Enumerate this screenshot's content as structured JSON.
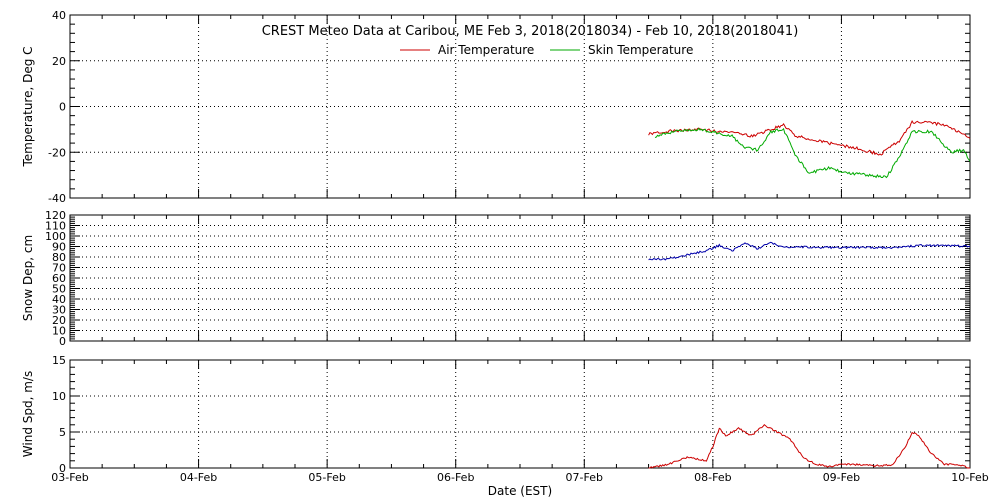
{
  "title": "CREST Meteo Data at Caribou, ME   Feb  3, 2018(2018034) - Feb 10, 2018(2018041)",
  "xlabel": "Date (EST)",
  "x_ticks": [
    "03-Feb",
    "04-Feb",
    "05-Feb",
    "06-Feb",
    "07-Feb",
    "08-Feb",
    "09-Feb",
    "10-Feb"
  ],
  "x_range_days": [
    0,
    7
  ],
  "grid": true,
  "chart_data": [
    {
      "type": "line",
      "ylabel": "Temperature, Deg C",
      "ylim": [
        -40,
        40
      ],
      "y_ticks": [
        -40,
        -20,
        0,
        20,
        40
      ],
      "legend": "top-center",
      "series": [
        {
          "name": "Air Temperature",
          "color": "#cc0000",
          "x": [
            4.5,
            4.7,
            4.9,
            5.0,
            5.15,
            5.3,
            5.45,
            5.55,
            5.65,
            5.75,
            5.9,
            6.1,
            6.3,
            6.45,
            6.55,
            6.7,
            6.85,
            7.0
          ],
          "y": [
            -12,
            -10.5,
            -10,
            -10.5,
            -11,
            -13,
            -10,
            -8,
            -13,
            -14,
            -16,
            -18,
            -21,
            -15,
            -7,
            -7,
            -9,
            -14
          ]
        },
        {
          "name": "Skin Temperature",
          "color": "#00aa00",
          "x": [
            4.55,
            4.7,
            4.9,
            5.0,
            5.15,
            5.25,
            5.35,
            5.45,
            5.55,
            5.65,
            5.75,
            5.9,
            6.05,
            6.2,
            6.35,
            6.45,
            6.55,
            6.7,
            6.85,
            6.95,
            7.0
          ],
          "y": [
            -13,
            -11,
            -10,
            -11,
            -13,
            -18,
            -19,
            -11,
            -10,
            -22,
            -29,
            -27,
            -29,
            -30,
            -31,
            -22,
            -11,
            -11,
            -20,
            -19,
            -24
          ]
        }
      ]
    },
    {
      "type": "line",
      "ylabel": "Snow Dep, cm",
      "ylim": [
        0,
        120
      ],
      "y_ticks": [
        0,
        10,
        20,
        30,
        40,
        50,
        60,
        70,
        80,
        90,
        100,
        110,
        120
      ],
      "series": [
        {
          "name": "",
          "color": "#0000aa",
          "x": [
            4.5,
            4.65,
            4.8,
            4.95,
            5.05,
            5.15,
            5.25,
            5.35,
            5.45,
            5.55,
            5.65,
            5.8,
            6.0,
            6.2,
            6.4,
            6.6,
            6.8,
            7.0
          ],
          "y": [
            78,
            78,
            82,
            86,
            91,
            86,
            93,
            88,
            94,
            89,
            90,
            89,
            89,
            89,
            89,
            91,
            91,
            90
          ]
        }
      ]
    },
    {
      "type": "line",
      "ylabel": "Wind Spd, m/s",
      "ylim": [
        0,
        15
      ],
      "y_ticks": [
        0,
        5,
        10,
        15
      ],
      "series": [
        {
          "name": "",
          "color": "#cc0000",
          "x": [
            4.5,
            4.65,
            4.8,
            4.95,
            5.0,
            5.05,
            5.1,
            5.2,
            5.3,
            5.4,
            5.5,
            5.6,
            5.7,
            5.8,
            5.9,
            6.0,
            6.1,
            6.3,
            6.4,
            6.5,
            6.55,
            6.6,
            6.7,
            6.8,
            6.9,
            7.0
          ],
          "y": [
            0,
            0.5,
            1.5,
            1,
            3,
            5.5,
            4.5,
            5.5,
            4.5,
            6,
            5,
            4,
            1.5,
            0.5,
            0.2,
            0.5,
            0.5,
            0.3,
            0.5,
            3,
            5,
            4.5,
            2,
            0.5,
            0.5,
            0
          ]
        }
      ]
    }
  ]
}
